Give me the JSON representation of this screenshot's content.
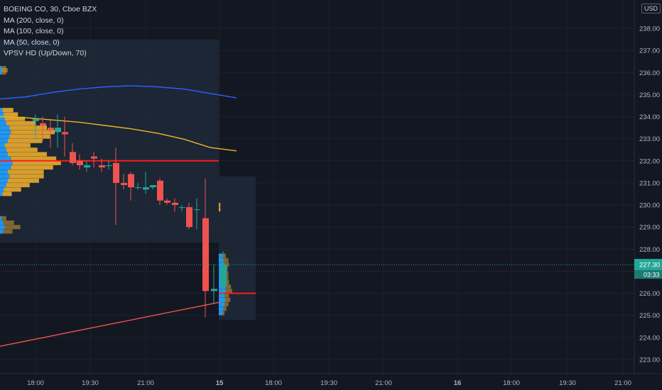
{
  "legend": {
    "symbol": "BOEING CO, 30, Cboe BZX",
    "ma200": "MA (200, close, 0)",
    "ma100": "MA (100, close, 0)",
    "ma50": "MA (50, close, 0)",
    "vpsv": "VPSV HD (Up/Down, 70)"
  },
  "currency": "USD",
  "colors": {
    "background": "#131722",
    "grid": "#1e222d",
    "up": "#26a69a",
    "down": "#ef5350",
    "ma200": "#ef5350",
    "ma100": "#2962ff",
    "ma50": "#f0b528",
    "profile_up": "#2196f3",
    "profile_down": "#d69e2e",
    "poc": "#ff1a1a",
    "value_area": "#1e2938",
    "last_price_bg": "#26a69a"
  },
  "chart_data": {
    "type": "candlestick",
    "ylim": [
      222.4,
      239.4
    ],
    "y_ticks": [
      "223.00",
      "224.00",
      "225.00",
      "226.00",
      "227.00",
      "228.00",
      "229.00",
      "230.00",
      "231.00",
      "232.00",
      "233.00",
      "234.00",
      "235.00",
      "236.00",
      "237.00",
      "238.00"
    ],
    "x_ticks": [
      "18:00",
      "19:30",
      "21:00",
      "15",
      "18:00",
      "19:30",
      "21:00",
      "16",
      "18:00",
      "19:30",
      "21:00"
    ],
    "current_price": {
      "price_label": "227.30",
      "countdown": "03:33",
      "value": 227.3
    },
    "candles": [
      {
        "o": 233.8,
        "h": 234.1,
        "l": 233.0,
        "c": 233.9
      },
      {
        "o": 233.7,
        "h": 234.0,
        "l": 232.9,
        "c": 233.6
      },
      {
        "o": 233.5,
        "h": 233.9,
        "l": 232.6,
        "c": 233.4
      },
      {
        "o": 233.3,
        "h": 234.1,
        "l": 232.6,
        "c": 233.5
      },
      {
        "o": 233.3,
        "h": 234.0,
        "l": 232.2,
        "c": 233.2
      },
      {
        "o": 232.4,
        "h": 232.8,
        "l": 231.8,
        "c": 231.9
      },
      {
        "o": 232.0,
        "h": 232.3,
        "l": 231.6,
        "c": 231.8
      },
      {
        "o": 231.7,
        "h": 232.0,
        "l": 231.5,
        "c": 231.8
      },
      {
        "o": 232.2,
        "h": 232.4,
        "l": 231.7,
        "c": 232.1
      },
      {
        "o": 231.8,
        "h": 232.1,
        "l": 231.5,
        "c": 231.7
      },
      {
        "o": 231.8,
        "h": 232.0,
        "l": 231.6,
        "c": 231.8
      },
      {
        "o": 231.9,
        "h": 232.6,
        "l": 229.1,
        "c": 231.0
      },
      {
        "o": 231.0,
        "h": 231.4,
        "l": 230.7,
        "c": 230.9
      },
      {
        "o": 231.4,
        "h": 231.5,
        "l": 230.2,
        "c": 230.8
      },
      {
        "o": 230.8,
        "h": 231.0,
        "l": 230.7,
        "c": 230.8
      },
      {
        "o": 230.7,
        "h": 231.5,
        "l": 230.5,
        "c": 230.8
      },
      {
        "o": 230.8,
        "h": 230.9,
        "l": 230.7,
        "c": 230.9
      },
      {
        "o": 231.1,
        "h": 231.2,
        "l": 230.0,
        "c": 230.2
      },
      {
        "o": 230.2,
        "h": 230.3,
        "l": 230.0,
        "c": 230.1
      },
      {
        "o": 230.1,
        "h": 230.3,
        "l": 229.7,
        "c": 230.0
      },
      {
        "o": 229.9,
        "h": 230.0,
        "l": 229.7,
        "c": 229.9
      },
      {
        "o": 229.9,
        "h": 230.1,
        "l": 228.9,
        "c": 229.0
      },
      {
        "o": 229.8,
        "h": 230.3,
        "l": 228.9,
        "c": 229.8
      },
      {
        "o": 229.4,
        "h": 231.2,
        "l": 224.9,
        "c": 226.1
      },
      {
        "o": 226.1,
        "h": 227.3,
        "l": 225.5,
        "c": 226.2
      },
      {
        "o": 226.3,
        "h": 227.9,
        "l": 225.4,
        "c": 227.3
      }
    ],
    "series": [
      {
        "name": "MA (200, close, 0)",
        "values": [
          223.6,
          223.8,
          224.0,
          224.2,
          224.4,
          224.6,
          224.8,
          225.0,
          225.2,
          225.4,
          225.6
        ]
      },
      {
        "name": "MA (100, close, 0)",
        "values": [
          234.8,
          234.9,
          235.1,
          235.25,
          235.35,
          235.4,
          235.35,
          235.25,
          235.05,
          234.85
        ]
      },
      {
        "name": "MA (50, close, 0)",
        "values": [
          234.0,
          233.95,
          233.85,
          233.75,
          233.6,
          233.45,
          233.25,
          232.98,
          232.6,
          232.45
        ]
      }
    ],
    "poc": [
      232.0,
      226.0
    ],
    "volume_profile_1": {
      "range": [
        228.3,
        237.5
      ],
      "bins": [
        {
          "p": 237.3,
          "up": 0.0,
          "down": 0.0
        },
        {
          "p": 236.2,
          "up": 0.02,
          "down": 0.06
        },
        {
          "p": 236.1,
          "up": 0.02,
          "down": 0.08
        },
        {
          "p": 236.0,
          "up": 0.02,
          "down": 0.06
        },
        {
          "p": 234.3,
          "up": 0.03,
          "down": 0.14
        },
        {
          "p": 234.1,
          "up": 0.05,
          "down": 0.18
        },
        {
          "p": 233.9,
          "up": 0.06,
          "down": 0.26
        },
        {
          "p": 233.7,
          "up": 0.08,
          "down": 0.38
        },
        {
          "p": 233.5,
          "up": 0.12,
          "down": 0.48
        },
        {
          "p": 233.3,
          "up": 0.14,
          "down": 0.56
        },
        {
          "p": 233.1,
          "up": 0.12,
          "down": 0.52
        },
        {
          "p": 232.9,
          "up": 0.1,
          "down": 0.44
        },
        {
          "p": 232.7,
          "up": 0.06,
          "down": 0.33
        },
        {
          "p": 232.5,
          "up": 0.08,
          "down": 0.4
        },
        {
          "p": 232.3,
          "up": 0.1,
          "down": 0.5
        },
        {
          "p": 232.1,
          "up": 0.14,
          "down": 0.58
        },
        {
          "p": 231.9,
          "up": 0.16,
          "down": 0.62
        },
        {
          "p": 231.7,
          "up": 0.14,
          "down": 0.54
        },
        {
          "p": 231.5,
          "up": 0.1,
          "down": 0.46
        },
        {
          "p": 231.3,
          "up": 0.12,
          "down": 0.44
        },
        {
          "p": 231.1,
          "up": 0.1,
          "down": 0.4
        },
        {
          "p": 230.9,
          "up": 0.08,
          "down": 0.3
        },
        {
          "p": 230.7,
          "up": 0.05,
          "down": 0.22
        },
        {
          "p": 230.5,
          "up": 0.03,
          "down": 0.12
        },
        {
          "p": 229.4,
          "up": 0.02,
          "down": 0.06
        },
        {
          "p": 229.2,
          "up": 0.04,
          "down": 0.14
        },
        {
          "p": 229.0,
          "up": 0.06,
          "down": 0.2
        },
        {
          "p": 228.8,
          "up": 0.04,
          "down": 0.12
        }
      ]
    },
    "volume_profile_2": {
      "range": [
        224.8,
        231.3
      ],
      "bins": [
        {
          "p": 230.0,
          "up": 0.0,
          "down": 0.05
        },
        {
          "p": 229.8,
          "up": 0.0,
          "down": 0.05
        },
        {
          "p": 227.7,
          "up": 0.1,
          "down": 0.12
        },
        {
          "p": 227.5,
          "up": 0.14,
          "down": 0.16
        },
        {
          "p": 227.3,
          "up": 0.18,
          "down": 0.14
        },
        {
          "p": 227.1,
          "up": 0.16,
          "down": 0.12
        },
        {
          "p": 226.9,
          "up": 0.2,
          "down": 0.1
        },
        {
          "p": 226.7,
          "up": 0.18,
          "down": 0.12
        },
        {
          "p": 226.5,
          "up": 0.16,
          "down": 0.16
        },
        {
          "p": 226.3,
          "up": 0.2,
          "down": 0.18
        },
        {
          "p": 226.1,
          "up": 0.22,
          "down": 0.2
        },
        {
          "p": 225.9,
          "up": 0.18,
          "down": 0.14
        },
        {
          "p": 225.7,
          "up": 0.2,
          "down": 0.16
        },
        {
          "p": 225.5,
          "up": 0.18,
          "down": 0.12
        },
        {
          "p": 225.3,
          "up": 0.14,
          "down": 0.1
        },
        {
          "p": 225.1,
          "up": 0.12,
          "down": 0.06
        }
      ]
    }
  }
}
